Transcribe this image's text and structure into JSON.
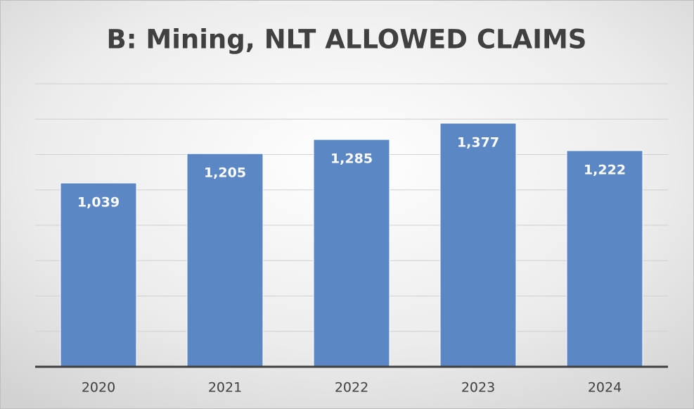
{
  "chart_data": {
    "type": "bar",
    "title": "B: Mining, NLT ALLOWED CLAIMS",
    "categories": [
      "2020",
      "2021",
      "2022",
      "2023",
      "2024"
    ],
    "values": [
      1039,
      1205,
      1285,
      1377,
      1222
    ],
    "value_labels": [
      "1,039",
      "1,205",
      "1,285",
      "1,377",
      "1,222"
    ],
    "color": "#5b87c4",
    "ylim": [
      0,
      1600
    ],
    "yticks": [
      0,
      200,
      400,
      600,
      800,
      1000,
      1200,
      1400,
      1600
    ],
    "grid": true
  }
}
